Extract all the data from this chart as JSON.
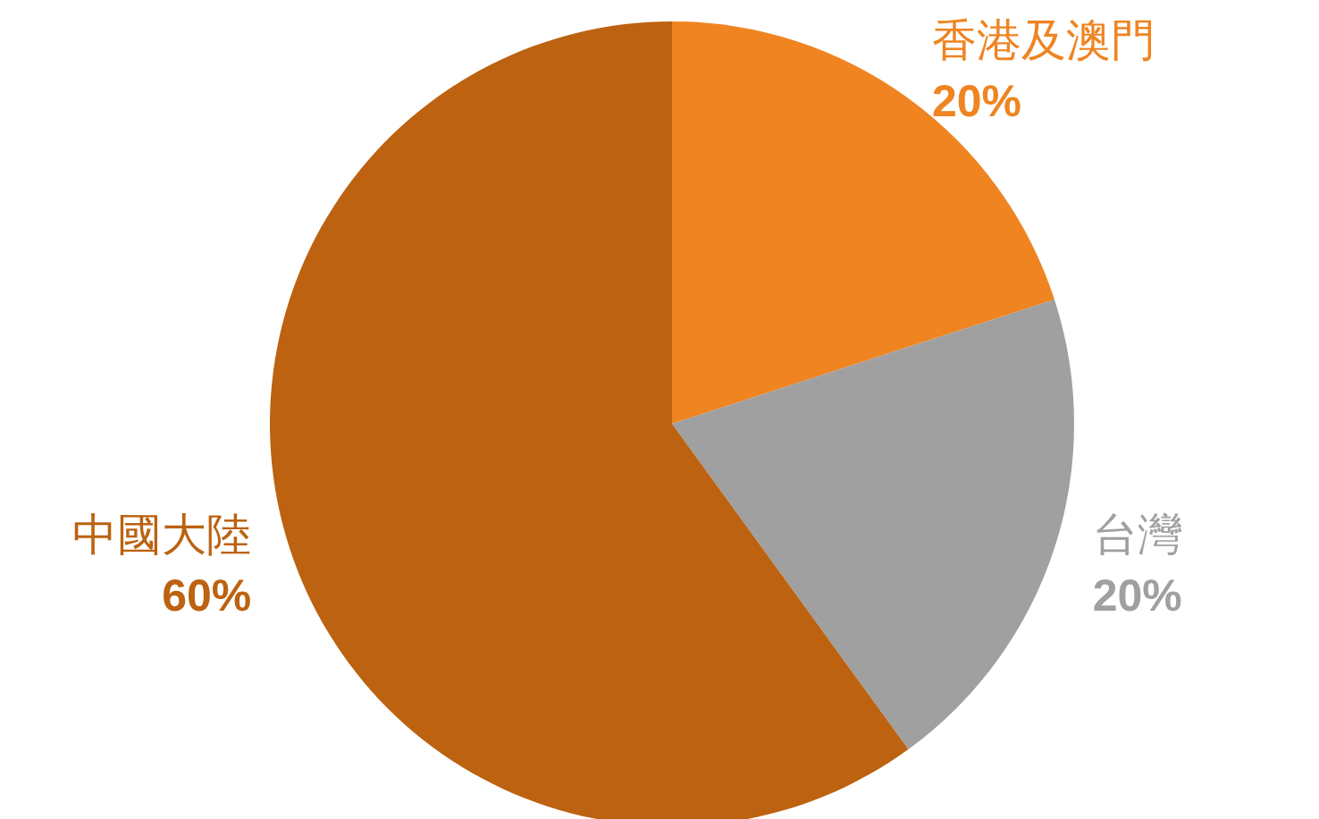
{
  "chart_data": {
    "type": "pie",
    "categories": [
      "香港及澳門",
      "台灣",
      "中國大陸"
    ],
    "values": [
      20,
      20,
      60
    ],
    "colors": [
      "#ef8421",
      "#a0a0a0",
      "#bc6210"
    ],
    "value_labels": [
      "20%",
      "20%",
      "60%"
    ]
  }
}
